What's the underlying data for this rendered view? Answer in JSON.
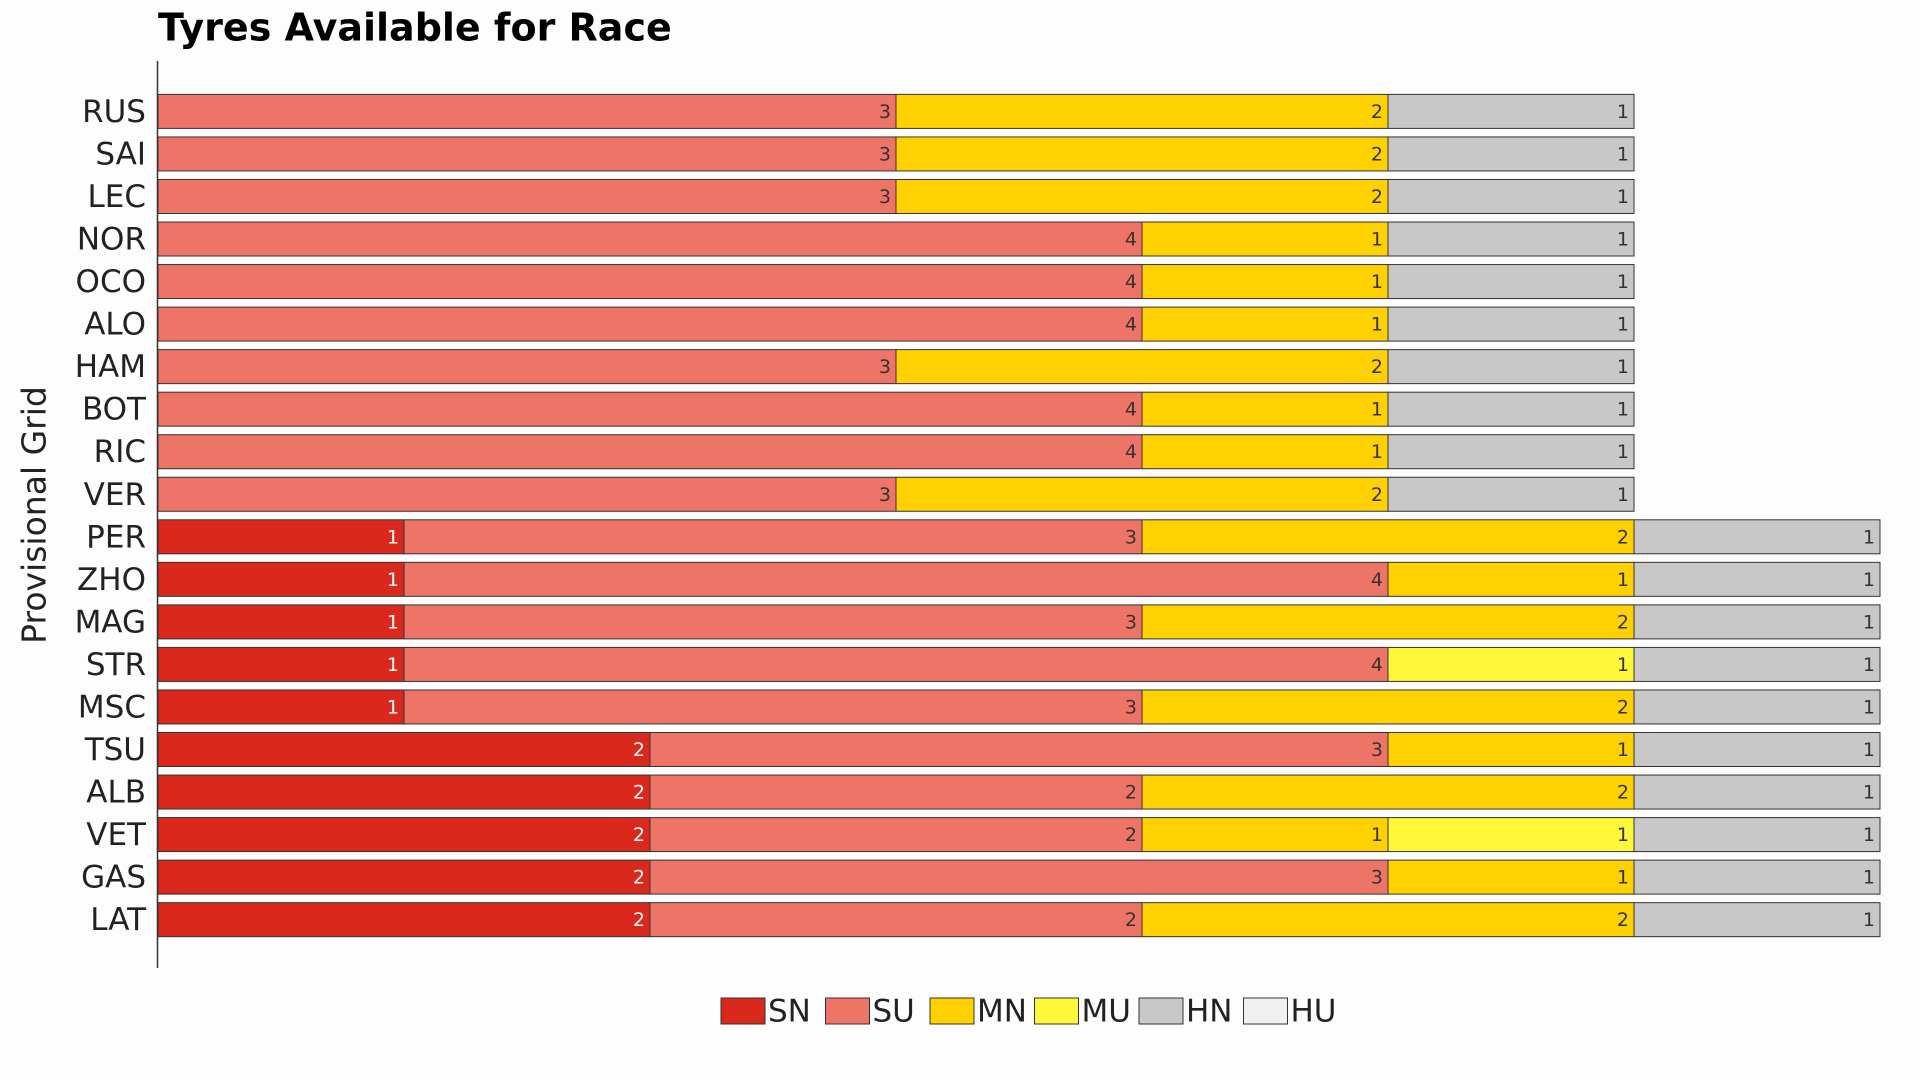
{
  "chart_data": {
    "type": "stacked-barh",
    "title": "Tyres Available for Race",
    "ylabel": "Provisional Grid",
    "categories": [
      "RUS",
      "SAI",
      "LEC",
      "NOR",
      "OCO",
      "ALO",
      "HAM",
      "BOT",
      "RIC",
      "VER",
      "PER",
      "ZHO",
      "MAG",
      "STR",
      "MSC",
      "TSU",
      "ALB",
      "VET",
      "GAS",
      "LAT"
    ],
    "series": [
      {
        "name": "SN",
        "color": "#da291c",
        "values": [
          0,
          0,
          0,
          0,
          0,
          0,
          0,
          0,
          0,
          0,
          1,
          1,
          1,
          1,
          1,
          2,
          2,
          2,
          2,
          2
        ]
      },
      {
        "name": "SU",
        "color": "#ef7468",
        "values": [
          3,
          3,
          3,
          4,
          4,
          4,
          3,
          4,
          4,
          3,
          3,
          4,
          3,
          4,
          3,
          3,
          2,
          2,
          3,
          2
        ]
      },
      {
        "name": "MN",
        "color": "#ffd100",
        "values": [
          2,
          2,
          2,
          1,
          1,
          1,
          2,
          1,
          1,
          2,
          2,
          1,
          2,
          0,
          2,
          1,
          2,
          1,
          1,
          2
        ]
      },
      {
        "name": "MU",
        "color": "#fff83a",
        "values": [
          0,
          0,
          0,
          0,
          0,
          0,
          0,
          0,
          0,
          0,
          0,
          0,
          0,
          1,
          0,
          0,
          0,
          1,
          0,
          0
        ]
      },
      {
        "name": "HN",
        "color": "#c8c8c8",
        "values": [
          1,
          1,
          1,
          1,
          1,
          1,
          1,
          1,
          1,
          1,
          1,
          1,
          1,
          1,
          1,
          1,
          1,
          1,
          1,
          1
        ]
      },
      {
        "name": "HU",
        "color": "#f0f0f0",
        "values": [
          0,
          0,
          0,
          0,
          0,
          0,
          0,
          0,
          0,
          0,
          0,
          0,
          0,
          0,
          0,
          0,
          0,
          0,
          0,
          0
        ]
      }
    ]
  }
}
